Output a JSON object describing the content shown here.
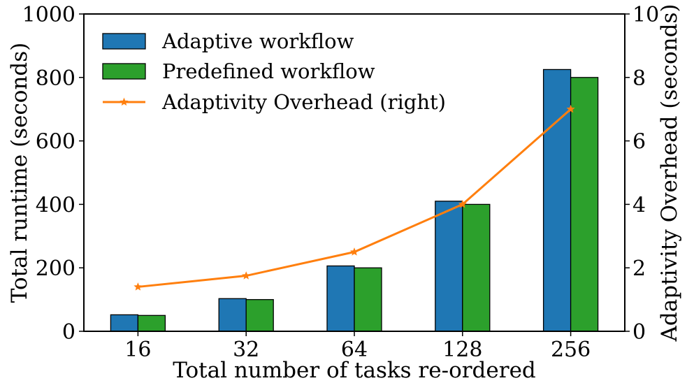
{
  "chart_data": {
    "type": "bar",
    "categories": [
      "16",
      "32",
      "64",
      "128",
      "256"
    ],
    "xlabel": "Total number of tasks re-ordered",
    "ylabel": "Total runtime (seconds)",
    "ylabel_right": "Adaptivity Overhead (seconds)",
    "ylim": [
      0,
      1000
    ],
    "ylim_right": [
      0,
      10
    ],
    "yticks": [
      0,
      200,
      400,
      600,
      800,
      1000
    ],
    "yticks_right": [
      0,
      2,
      4,
      6,
      8,
      10
    ],
    "grid": false,
    "legend_position": "top-left",
    "series": [
      {
        "name": "Adaptive workflow",
        "kind": "bar",
        "axis": "left",
        "color": "#1f77b4",
        "values": [
          52,
          103,
          206,
          410,
          825
        ]
      },
      {
        "name": "Predefined workflow",
        "kind": "bar",
        "axis": "left",
        "color": "#2ca02c",
        "values": [
          50,
          100,
          200,
          400,
          800
        ]
      },
      {
        "name": "Adaptivity Overhead (right)",
        "kind": "line",
        "axis": "right",
        "color": "#ff7f0e",
        "marker": "star",
        "values": [
          1.4,
          1.75,
          2.5,
          4.0,
          7.0
        ]
      }
    ]
  }
}
